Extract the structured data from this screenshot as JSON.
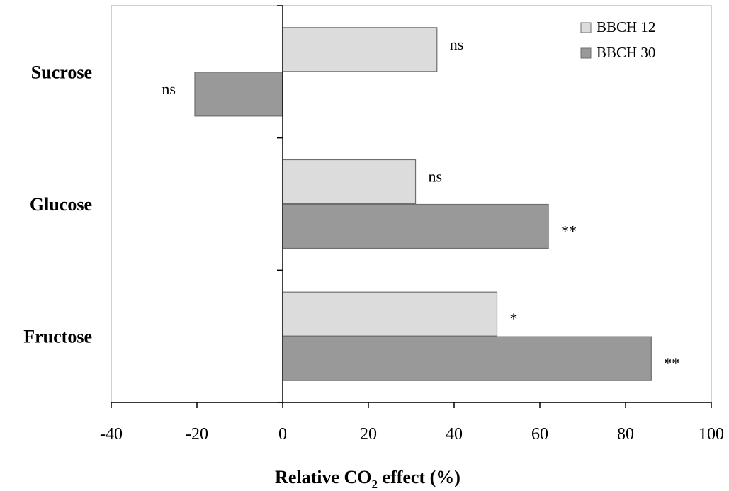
{
  "chart_data": {
    "type": "bar",
    "orientation": "horizontal",
    "categories": [
      "Sucrose",
      "Glucose",
      "Fructose"
    ],
    "series": [
      {
        "name": "BBCH 12",
        "values": [
          36,
          31,
          50
        ],
        "significance": [
          "ns",
          "ns",
          "*"
        ],
        "color": "#dcdcdc"
      },
      {
        "name": "BBCH 30",
        "values": [
          -20.5,
          62,
          86
        ],
        "significance": [
          "ns",
          "**",
          "**"
        ],
        "color": "#999999"
      }
    ],
    "xlabel_main": "Relative CO",
    "xlabel_sub": "2",
    "xlabel_tail": " effect (%)",
    "xlim": [
      -40,
      100
    ],
    "xticks": [
      -40,
      -20,
      0,
      20,
      40,
      60,
      80,
      100
    ],
    "grid": false,
    "legend_position": "top-right",
    "frame_color": "#c0c0c0"
  }
}
